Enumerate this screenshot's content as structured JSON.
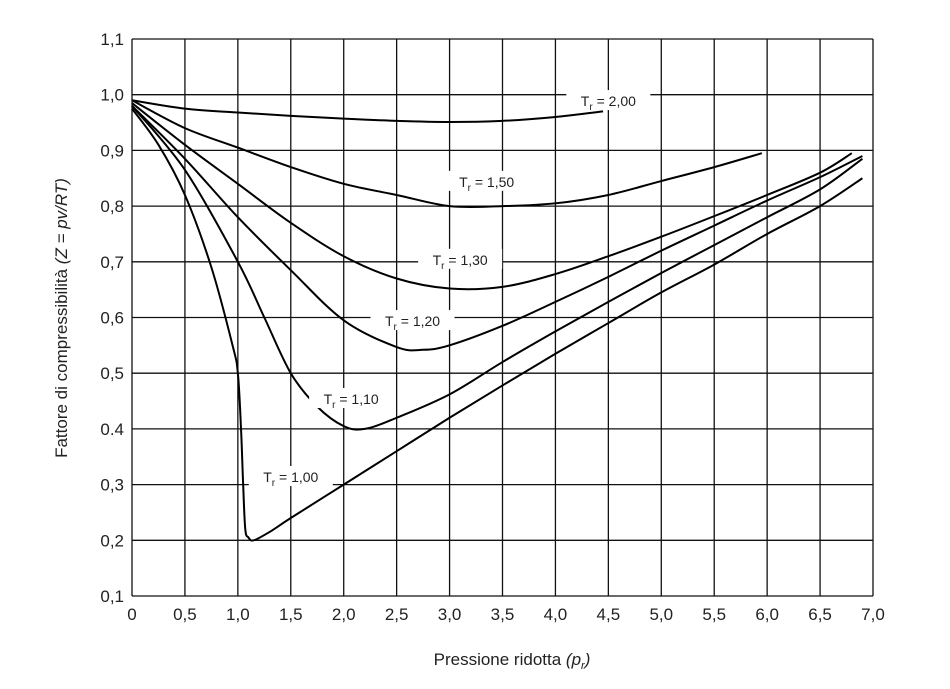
{
  "chart_data": {
    "type": "line",
    "title": "",
    "xlabel": "Pressione ridotta (p_r)",
    "xlabel_main": "Pressione ridotta ",
    "xlabel_italic": "(p",
    "xlabel_sub": "r",
    "xlabel_close": ")",
    "ylabel": "Fattore di compressibilità (Z = pv/RT)",
    "ylabel_main": "Fattore di compressibilità ",
    "ylabel_italic": "(Z = pv/RT)",
    "xlim": [
      0,
      7.0
    ],
    "ylim": [
      0.1,
      1.1
    ],
    "grid": true,
    "x_ticks": [
      "0",
      "0,5",
      "1,0",
      "1,5",
      "2,0",
      "2,5",
      "3,0",
      "3,5",
      "4,0",
      "4,5",
      "5,0",
      "5,5",
      "6,0",
      "6,5",
      "7,0"
    ],
    "y_ticks": [
      "0,1",
      "0,2",
      "0,3",
      "0.4",
      "0,5",
      "0,6",
      "0,7",
      "0,8",
      "0,9",
      "1,0",
      "1,1"
    ],
    "series": [
      {
        "name": "T_r = 2,00",
        "label_T": "T",
        "label_sub": "r",
        "label_val": " = 2,00",
        "label_pos": [
          4.5,
          0.985
        ],
        "points": [
          [
            0,
            0.99
          ],
          [
            0.5,
            0.975
          ],
          [
            1,
            0.968
          ],
          [
            1.5,
            0.962
          ],
          [
            2,
            0.957
          ],
          [
            2.5,
            0.953
          ],
          [
            3,
            0.951
          ],
          [
            3.5,
            0.953
          ],
          [
            4,
            0.96
          ],
          [
            4.45,
            0.97
          ]
        ]
      },
      {
        "name": "T_r = 1,50",
        "label_T": "T",
        "label_sub": "r",
        "label_val": " = 1,50",
        "label_pos": [
          3.35,
          0.84
        ],
        "points": [
          [
            0,
            0.99
          ],
          [
            0.5,
            0.94
          ],
          [
            1,
            0.905
          ],
          [
            1.5,
            0.87
          ],
          [
            2,
            0.84
          ],
          [
            2.5,
            0.82
          ],
          [
            3,
            0.8
          ],
          [
            3.5,
            0.8
          ],
          [
            4,
            0.805
          ],
          [
            4.5,
            0.82
          ],
          [
            5,
            0.845
          ],
          [
            5.5,
            0.87
          ],
          [
            5.95,
            0.895
          ]
        ]
      },
      {
        "name": "T_r = 1,30",
        "label_T": "T",
        "label_sub": "r",
        "label_val": " = 1,30",
        "label_pos": [
          3.1,
          0.7
        ],
        "points": [
          [
            0,
            0.985
          ],
          [
            0.5,
            0.91
          ],
          [
            1,
            0.84
          ],
          [
            1.5,
            0.77
          ],
          [
            2,
            0.71
          ],
          [
            2.5,
            0.67
          ],
          [
            3,
            0.652
          ],
          [
            3.5,
            0.655
          ],
          [
            4,
            0.678
          ],
          [
            4.5,
            0.71
          ],
          [
            5,
            0.745
          ],
          [
            5.5,
            0.782
          ],
          [
            6,
            0.82
          ],
          [
            6.5,
            0.86
          ],
          [
            6.8,
            0.895
          ]
        ]
      },
      {
        "name": "T_r = 1,20",
        "label_T": "T",
        "label_sub": "r",
        "label_val": " = 1,20",
        "label_pos": [
          2.65,
          0.59
        ],
        "points": [
          [
            0,
            0.98
          ],
          [
            0.5,
            0.885
          ],
          [
            1,
            0.78
          ],
          [
            1.5,
            0.685
          ],
          [
            2,
            0.595
          ],
          [
            2.5,
            0.547
          ],
          [
            2.75,
            0.542
          ],
          [
            3,
            0.55
          ],
          [
            3.5,
            0.585
          ],
          [
            4,
            0.628
          ],
          [
            4.5,
            0.673
          ],
          [
            5,
            0.72
          ],
          [
            5.5,
            0.765
          ],
          [
            6,
            0.81
          ],
          [
            6.5,
            0.852
          ],
          [
            6.9,
            0.89
          ]
        ]
      },
      {
        "name": "T_r = 1,10",
        "label_T": "T",
        "label_sub": "r",
        "label_val": " = 1,10",
        "label_pos": [
          2.07,
          0.45
        ],
        "points": [
          [
            0,
            0.98
          ],
          [
            0.5,
            0.865
          ],
          [
            1,
            0.7
          ],
          [
            1.25,
            0.6
          ],
          [
            1.5,
            0.5
          ],
          [
            1.75,
            0.44
          ],
          [
            2,
            0.405
          ],
          [
            2.2,
            0.4
          ],
          [
            2.5,
            0.42
          ],
          [
            3,
            0.462
          ],
          [
            3.5,
            0.52
          ],
          [
            4,
            0.575
          ],
          [
            4.5,
            0.628
          ],
          [
            5,
            0.68
          ],
          [
            5.5,
            0.73
          ],
          [
            6,
            0.78
          ],
          [
            6.5,
            0.83
          ],
          [
            6.9,
            0.885
          ]
        ]
      },
      {
        "name": "T_r = 1,00",
        "label_T": "T",
        "label_sub": "r",
        "label_val": " = 1,00",
        "label_pos": [
          1.5,
          0.31
        ],
        "points": [
          [
            0,
            0.975
          ],
          [
            0.25,
            0.91
          ],
          [
            0.5,
            0.82
          ],
          [
            0.75,
            0.69
          ],
          [
            0.95,
            0.55
          ],
          [
            1.0,
            0.5
          ],
          [
            1.03,
            0.4
          ],
          [
            1.05,
            0.3
          ],
          [
            1.07,
            0.22
          ],
          [
            1.1,
            0.205
          ],
          [
            1.15,
            0.2
          ],
          [
            1.3,
            0.215
          ],
          [
            1.5,
            0.24
          ],
          [
            2,
            0.3
          ],
          [
            2.5,
            0.36
          ],
          [
            3,
            0.42
          ],
          [
            3.5,
            0.478
          ],
          [
            4,
            0.535
          ],
          [
            4.5,
            0.59
          ],
          [
            5,
            0.645
          ],
          [
            5.5,
            0.695
          ],
          [
            6,
            0.75
          ],
          [
            6.5,
            0.8
          ],
          [
            6.9,
            0.85
          ]
        ]
      }
    ]
  }
}
